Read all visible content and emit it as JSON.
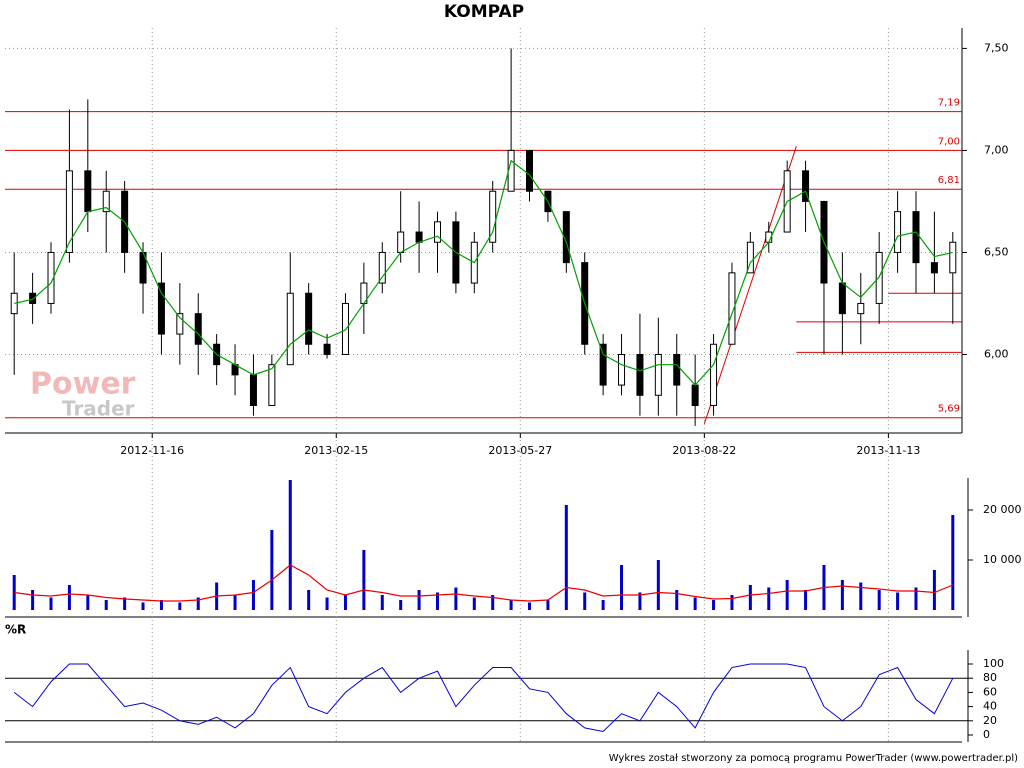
{
  "chart_data": [
    {
      "type": "candlestick",
      "title": "KOMPAP",
      "watermark": [
        "Power",
        "Trader"
      ],
      "categories": [
        null,
        null,
        null,
        null,
        null,
        null,
        null,
        null,
        "2012-11-16",
        null,
        null,
        null,
        null,
        null,
        null,
        null,
        null,
        null,
        "2013-02-15",
        null,
        null,
        null,
        null,
        null,
        null,
        null,
        null,
        null,
        "2013-05-27",
        null,
        null,
        null,
        null,
        null,
        null,
        null,
        null,
        null,
        "2013-08-22",
        null,
        null,
        null,
        null,
        null,
        null,
        null,
        null,
        null,
        "2013-11-13",
        null,
        null,
        null
      ],
      "open": [
        6.2,
        6.3,
        6.25,
        6.5,
        6.9,
        6.7,
        6.8,
        6.5,
        6.35,
        6.1,
        6.2,
        6.05,
        5.95,
        5.9,
        5.75,
        5.95,
        6.3,
        6.05,
        6.0,
        6.25,
        6.35,
        6.5,
        6.6,
        6.55,
        6.65,
        6.35,
        6.55,
        6.8,
        7.0,
        6.8,
        6.7,
        6.45,
        6.05,
        5.85,
        6.0,
        5.8,
        6.0,
        5.85,
        5.75,
        6.05,
        6.4,
        6.55,
        6.6,
        6.9,
        6.75,
        6.35,
        6.2,
        6.25,
        6.5,
        6.7,
        6.45,
        6.4
      ],
      "high": [
        6.5,
        6.4,
        6.55,
        7.2,
        7.25,
        6.9,
        6.85,
        6.55,
        6.5,
        6.35,
        6.3,
        6.1,
        6.05,
        6.0,
        6.0,
        6.5,
        6.35,
        6.1,
        6.3,
        6.45,
        6.55,
        6.8,
        6.75,
        6.7,
        6.7,
        6.6,
        6.85,
        7.5,
        7.0,
        6.8,
        6.7,
        6.5,
        6.1,
        6.1,
        6.2,
        6.18,
        6.1,
        6.0,
        6.1,
        6.45,
        6.6,
        6.65,
        6.95,
        6.95,
        6.75,
        6.5,
        6.4,
        6.6,
        6.8,
        6.8,
        6.7,
        6.6
      ],
      "low": [
        5.9,
        6.15,
        6.2,
        6.45,
        6.6,
        6.5,
        6.4,
        6.2,
        6.0,
        5.95,
        5.9,
        5.85,
        5.8,
        5.7,
        5.75,
        5.95,
        6.0,
        5.98,
        6.0,
        6.1,
        6.3,
        6.45,
        6.4,
        6.4,
        6.3,
        6.3,
        6.5,
        6.8,
        6.75,
        6.65,
        6.4,
        6.0,
        5.8,
        5.8,
        5.7,
        5.7,
        5.7,
        5.65,
        5.7,
        6.05,
        6.4,
        6.5,
        6.6,
        6.6,
        6.0,
        6.0,
        6.05,
        6.15,
        6.4,
        6.3,
        6.3,
        6.15
      ],
      "close": [
        6.3,
        6.25,
        6.5,
        6.9,
        6.7,
        6.8,
        6.5,
        6.35,
        6.1,
        6.2,
        6.05,
        5.95,
        5.9,
        5.75,
        5.95,
        6.3,
        6.05,
        6.0,
        6.25,
        6.35,
        6.5,
        6.6,
        6.55,
        6.65,
        6.35,
        6.55,
        6.8,
        7.0,
        6.8,
        6.7,
        6.45,
        6.05,
        5.85,
        6.0,
        5.8,
        6.0,
        5.85,
        5.75,
        6.05,
        6.4,
        6.55,
        6.6,
        6.9,
        6.75,
        6.35,
        6.2,
        6.25,
        6.5,
        6.7,
        6.45,
        6.4,
        6.55
      ],
      "average": {
        "color": "#00a000",
        "values": [
          6.25,
          6.27,
          6.35,
          6.55,
          6.7,
          6.72,
          6.65,
          6.5,
          6.3,
          6.18,
          6.1,
          6.0,
          5.95,
          5.9,
          5.93,
          6.05,
          6.12,
          6.08,
          6.12,
          6.25,
          6.38,
          6.5,
          6.55,
          6.58,
          6.5,
          6.45,
          6.6,
          6.95,
          6.88,
          6.75,
          6.55,
          6.25,
          6.0,
          5.95,
          5.92,
          5.95,
          5.95,
          5.85,
          5.95,
          6.2,
          6.45,
          6.55,
          6.75,
          6.8,
          6.55,
          6.35,
          6.28,
          6.38,
          6.58,
          6.6,
          6.48,
          6.5
        ]
      },
      "ylim": [
        5.62,
        7.6
      ],
      "yticks": [
        {
          "value": 6.0,
          "label": "6,00"
        },
        {
          "value": 6.5,
          "label": "6,50"
        },
        {
          "value": 7.0,
          "label": "7,00"
        },
        {
          "value": 7.5,
          "label": "7,50"
        }
      ],
      "levels": [
        {
          "value": 7.19,
          "label": "7,19"
        },
        {
          "value": 7.0,
          "label": "7,00"
        },
        {
          "value": 6.81,
          "label": "6,81"
        },
        {
          "value": 5.69,
          "label": "5,69"
        }
      ],
      "level_color": "#dd0000",
      "trend_lines": [
        {
          "x": [
            38,
            43
          ],
          "y": [
            5.66,
            7.02
          ]
        },
        {
          "x": [
            48,
            52
          ],
          "y": [
            6.3,
            6.3
          ]
        },
        {
          "x": [
            43,
            52
          ],
          "y": [
            6.16,
            6.16
          ]
        },
        {
          "x": [
            43,
            52
          ],
          "y": [
            6.01,
            6.01
          ]
        }
      ],
      "grid": true
    },
    {
      "type": "bar",
      "color": "#0000cc",
      "values": [
        7000,
        4000,
        2500,
        5000,
        3000,
        2000,
        2500,
        1500,
        2000,
        1500,
        2500,
        5500,
        3000,
        6000,
        16000,
        26000,
        4000,
        2500,
        3000,
        12000,
        3000,
        2000,
        4000,
        3500,
        4500,
        2500,
        3000,
        2000,
        1500,
        2000,
        21000,
        3500,
        2000,
        9000,
        3500,
        10000,
        4000,
        2500,
        2000,
        3000,
        5000,
        4500,
        6000,
        4000,
        9000,
        6000,
        5500,
        4000,
        3500,
        4500,
        8000,
        19000
      ],
      "average": {
        "color": "#ee0000",
        "values": [
          3500,
          3000,
          2800,
          3200,
          3000,
          2500,
          2200,
          2000,
          1800,
          1800,
          2000,
          2800,
          3000,
          3500,
          6000,
          9000,
          7000,
          4000,
          3000,
          4000,
          3500,
          2800,
          2800,
          3000,
          3200,
          2800,
          2500,
          2000,
          1800,
          2000,
          4500,
          4000,
          2800,
          3000,
          3000,
          3500,
          3300,
          2700,
          2200,
          2300,
          3000,
          3300,
          3800,
          3800,
          4500,
          4800,
          4500,
          4200,
          3800,
          3800,
          3500,
          5000
        ]
      },
      "ylim": [
        0,
        26000
      ],
      "yticks": [
        {
          "value": 10000,
          "label": "10 000"
        },
        {
          "value": 20000,
          "label": "20 000"
        }
      ]
    },
    {
      "type": "line",
      "title": "%R",
      "color": "#0000dd",
      "values": [
        60,
        40,
        75,
        100,
        100,
        70,
        40,
        45,
        35,
        20,
        15,
        25,
        10,
        30,
        70,
        95,
        40,
        30,
        60,
        80,
        95,
        60,
        80,
        90,
        40,
        70,
        95,
        95,
        65,
        60,
        30,
        10,
        5,
        30,
        20,
        60,
        40,
        10,
        60,
        95,
        100,
        100,
        100,
        95,
        40,
        20,
        40,
        85,
        95,
        50,
        30,
        80
      ],
      "ylim": [
        0,
        100
      ],
      "yticks": [
        0,
        20,
        40,
        60,
        80,
        100
      ],
      "reference_lines": [
        20,
        80
      ]
    }
  ],
  "footer": "Wykres został stworzony za pomocą programu PowerTrader (www.powertrader.pl)"
}
